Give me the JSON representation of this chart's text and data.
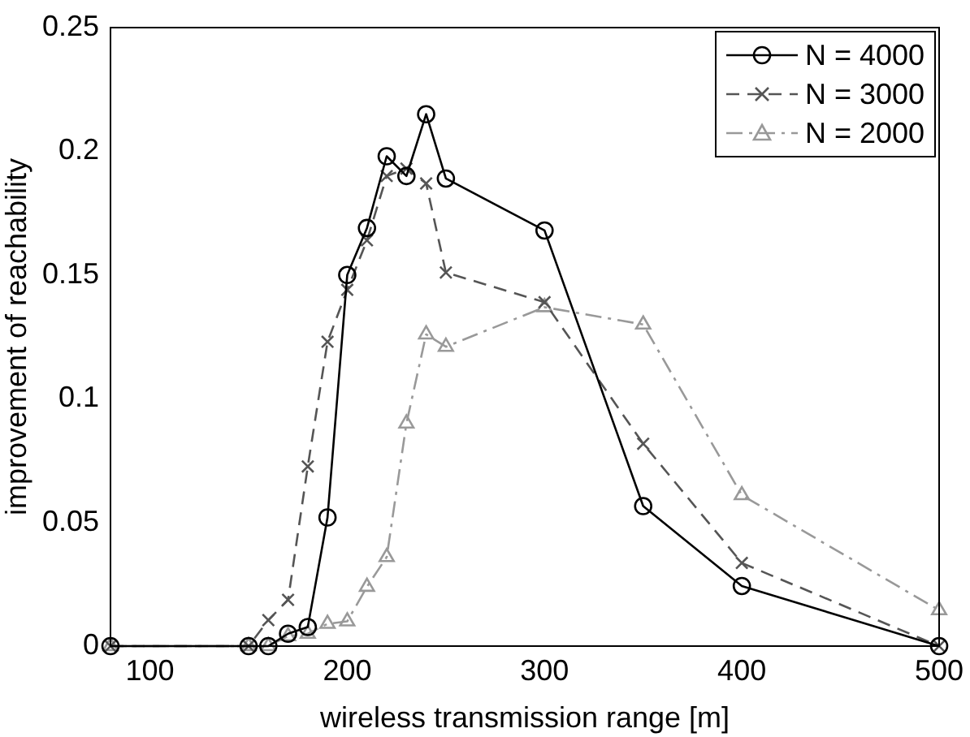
{
  "chart_data": {
    "type": "line",
    "xlabel": "wireless transmission range [m]",
    "ylabel": "improvement of reachability",
    "xlim": [
      80,
      500
    ],
    "xticks": [
      100,
      200,
      300,
      400,
      500
    ],
    "ylim": [
      0,
      0.25
    ],
    "yticks": [
      0,
      0.05,
      0.1,
      0.15,
      0.2,
      0.25
    ],
    "grid": false,
    "legend": "top right",
    "x": [
      80,
      150,
      160,
      170,
      180,
      190,
      200,
      210,
      220,
      230,
      240,
      250,
      300,
      350,
      400,
      500
    ],
    "series": [
      {
        "name": "N = 4000",
        "color": "#000000",
        "marker": "circle",
        "line_style": "solid",
        "values": [
          0,
          0,
          0,
          0.005,
          0.0077,
          0.052,
          0.15,
          0.169,
          0.198,
          0.19,
          0.215,
          0.189,
          0.168,
          0.0566,
          0.0243,
          0
        ]
      },
      {
        "name": "N = 3000",
        "color": "#555555",
        "marker": "cross",
        "line_style": "dashed",
        "values": [
          0,
          0,
          0.0105,
          0.0187,
          0.0726,
          0.123,
          0.144,
          0.164,
          0.19,
          0.193,
          0.187,
          0.151,
          0.139,
          0.0818,
          0.0336,
          0
        ]
      },
      {
        "name": "N = 2000",
        "color": "#999999",
        "marker": "triangle",
        "line_style": "dashdot",
        "values": [
          0,
          0,
          0,
          0.004,
          0.005,
          0.009,
          0.01,
          0.024,
          0.036,
          0.09,
          0.126,
          0.121,
          0.137,
          0.13,
          0.061,
          0.0145
        ]
      }
    ]
  }
}
